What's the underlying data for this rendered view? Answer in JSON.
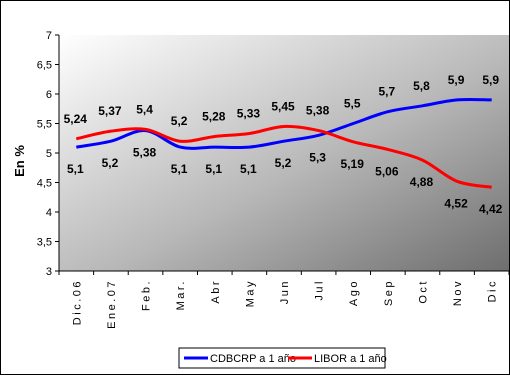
{
  "chart_data": {
    "type": "line",
    "ylabel": "En %",
    "categories": [
      "Dic.06",
      "Ene.07",
      "Feb.",
      "Mar.",
      "Abr",
      "May",
      "Jun",
      "Jul",
      "Ago",
      "Sep",
      "Oct",
      "Nov",
      "Dic"
    ],
    "y_ticks": [
      "3",
      "3,5",
      "4",
      "4,5",
      "5",
      "5,5",
      "6",
      "6,5",
      "7"
    ],
    "ylim": [
      3,
      7
    ],
    "grid": false,
    "legend_position": "bottom",
    "series": [
      {
        "name": "CDBCRP a 1 año",
        "color": "#0000ff",
        "values": [
          5.1,
          5.2,
          5.38,
          5.1,
          5.1,
          5.1,
          5.2,
          5.3,
          5.5,
          5.7,
          5.8,
          5.9,
          5.9
        ],
        "labels": [
          "5,1",
          "5,2",
          "5,38",
          "5,1",
          "5,1",
          "5,1",
          "5,2",
          "5,3",
          "5,5",
          "5,7",
          "5,8",
          "5,9",
          "5,9"
        ]
      },
      {
        "name": "LIBOR a 1 año",
        "color": "#ff0000",
        "values": [
          5.24,
          5.37,
          5.4,
          5.2,
          5.28,
          5.33,
          5.45,
          5.38,
          5.19,
          5.06,
          4.88,
          4.52,
          4.42
        ],
        "labels": [
          "5,24",
          "5,37",
          "5,4",
          "5,2",
          "5,28",
          "5,33",
          "5,45",
          "5,38",
          "5,19",
          "5,06",
          "4,88",
          "4,52",
          "4,42"
        ]
      }
    ]
  }
}
